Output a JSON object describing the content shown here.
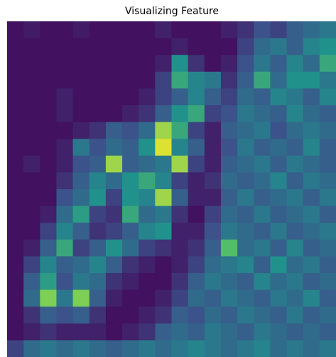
{
  "chart_data": {
    "type": "heatmap",
    "title": "Visualizing Feature",
    "colormap": "viridis",
    "clim": [
      0,
      1
    ],
    "values": [
      [
        0.05,
        0.08,
        0.05,
        0.05,
        0.08,
        0.05,
        0.05,
        0.05,
        0.05,
        0.1,
        0.05,
        0.05,
        0.05,
        0.1,
        0.15,
        0.25,
        0.2,
        0.3,
        0.35,
        0.4
      ],
      [
        0.05,
        0.05,
        0.05,
        0.05,
        0.05,
        0.05,
        0.05,
        0.05,
        0.05,
        0.05,
        0.1,
        0.05,
        0.05,
        0.05,
        0.2,
        0.35,
        0.4,
        0.3,
        0.45,
        0.5
      ],
      [
        0.05,
        0.05,
        0.05,
        0.05,
        0.05,
        0.05,
        0.05,
        0.05,
        0.05,
        0.1,
        0.5,
        0.15,
        0.05,
        0.1,
        0.25,
        0.4,
        0.3,
        0.45,
        0.35,
        0.6
      ],
      [
        0.05,
        0.05,
        0.05,
        0.05,
        0.05,
        0.05,
        0.05,
        0.05,
        0.05,
        0.2,
        0.6,
        0.45,
        0.4,
        0.15,
        0.3,
        0.6,
        0.35,
        0.5,
        0.5,
        0.4
      ],
      [
        0.05,
        0.05,
        0.05,
        0.1,
        0.05,
        0.05,
        0.05,
        0.05,
        0.1,
        0.2,
        0.3,
        0.45,
        0.3,
        0.2,
        0.35,
        0.3,
        0.45,
        0.4,
        0.3,
        0.45
      ],
      [
        0.05,
        0.05,
        0.05,
        0.1,
        0.05,
        0.05,
        0.05,
        0.1,
        0.15,
        0.3,
        0.5,
        0.6,
        0.2,
        0.25,
        0.4,
        0.35,
        0.3,
        0.45,
        0.35,
        0.3
      ],
      [
        0.05,
        0.05,
        0.05,
        0.05,
        0.1,
        0.15,
        0.3,
        0.25,
        0.35,
        0.85,
        0.6,
        0.2,
        0.1,
        0.3,
        0.35,
        0.4,
        0.25,
        0.35,
        0.4,
        0.35
      ],
      [
        0.05,
        0.05,
        0.05,
        0.1,
        0.4,
        0.25,
        0.35,
        0.3,
        0.5,
        0.95,
        0.45,
        0.3,
        0.1,
        0.25,
        0.4,
        0.3,
        0.35,
        0.3,
        0.45,
        0.3
      ],
      [
        0.05,
        0.1,
        0.05,
        0.1,
        0.25,
        0.3,
        0.85,
        0.3,
        0.35,
        0.4,
        0.85,
        0.2,
        0.1,
        0.3,
        0.35,
        0.4,
        0.3,
        0.4,
        0.35,
        0.3
      ],
      [
        0.05,
        0.05,
        0.05,
        0.15,
        0.3,
        0.45,
        0.35,
        0.5,
        0.6,
        0.45,
        0.2,
        0.1,
        0.15,
        0.35,
        0.3,
        0.35,
        0.45,
        0.3,
        0.4,
        0.35
      ],
      [
        0.05,
        0.05,
        0.05,
        0.25,
        0.35,
        0.5,
        0.2,
        0.5,
        0.45,
        0.85,
        0.3,
        0.1,
        0.1,
        0.3,
        0.4,
        0.3,
        0.35,
        0.4,
        0.3,
        0.4
      ],
      [
        0.05,
        0.05,
        0.1,
        0.35,
        0.55,
        0.2,
        0.15,
        0.6,
        0.35,
        0.4,
        0.15,
        0.05,
        0.2,
        0.35,
        0.3,
        0.4,
        0.3,
        0.35,
        0.4,
        0.3
      ],
      [
        0.05,
        0.05,
        0.2,
        0.45,
        0.3,
        0.15,
        0.2,
        0.3,
        0.45,
        0.5,
        0.1,
        0.1,
        0.25,
        0.4,
        0.35,
        0.3,
        0.4,
        0.3,
        0.35,
        0.4
      ],
      [
        0.05,
        0.1,
        0.3,
        0.6,
        0.2,
        0.3,
        0.5,
        0.35,
        0.2,
        0.15,
        0.1,
        0.15,
        0.3,
        0.7,
        0.35,
        0.4,
        0.3,
        0.45,
        0.3,
        0.35
      ],
      [
        0.05,
        0.2,
        0.45,
        0.3,
        0.35,
        0.45,
        0.3,
        0.15,
        0.1,
        0.05,
        0.1,
        0.2,
        0.35,
        0.4,
        0.45,
        0.3,
        0.5,
        0.35,
        0.4,
        0.3
      ],
      [
        0.05,
        0.3,
        0.55,
        0.25,
        0.4,
        0.35,
        0.15,
        0.1,
        0.05,
        0.05,
        0.15,
        0.3,
        0.4,
        0.35,
        0.3,
        0.45,
        0.35,
        0.4,
        0.3,
        0.35
      ],
      [
        0.05,
        0.35,
        0.8,
        0.4,
        0.8,
        0.3,
        0.1,
        0.05,
        0.05,
        0.1,
        0.2,
        0.35,
        0.3,
        0.4,
        0.35,
        0.3,
        0.4,
        0.35,
        0.45,
        0.3
      ],
      [
        0.05,
        0.15,
        0.3,
        0.25,
        0.3,
        0.15,
        0.05,
        0.05,
        0.1,
        0.15,
        0.3,
        0.25,
        0.35,
        0.3,
        0.4,
        0.35,
        0.3,
        0.4,
        0.3,
        0.35
      ],
      [
        0.05,
        0.1,
        0.15,
        0.1,
        0.1,
        0.1,
        0.05,
        0.1,
        0.15,
        0.3,
        0.35,
        0.3,
        0.4,
        0.35,
        0.3,
        0.4,
        0.35,
        0.3,
        0.35,
        0.3
      ],
      [
        0.2,
        0.35,
        0.4,
        0.35,
        0.4,
        0.35,
        0.3,
        0.35,
        0.4,
        0.35,
        0.4,
        0.45,
        0.4,
        0.35,
        0.4,
        0.45,
        0.35,
        0.4,
        0.35,
        0.4
      ]
    ]
  }
}
